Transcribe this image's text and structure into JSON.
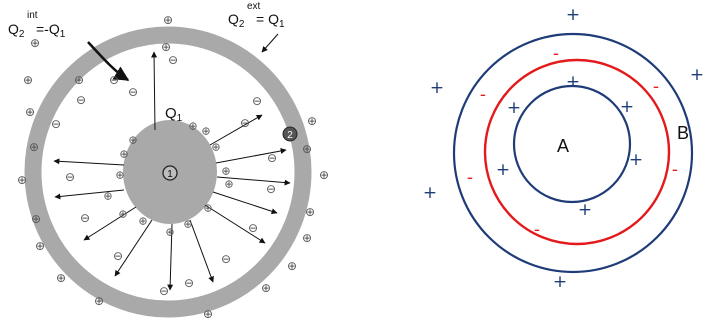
{
  "left_figure": {
    "q2_int": {
      "main": "Q",
      "sub": "2",
      "sup": "int",
      "rhs": "=-Q",
      "rhs_sub": "1"
    },
    "q2_ext": {
      "main": "Q",
      "sub": "2",
      "sup": "ext",
      "rhs": "= Q",
      "rhs_sub": "1"
    },
    "q1": {
      "main": "Q",
      "sub": "1"
    },
    "conductor_1_label": "1",
    "conductor_2_label": "2",
    "outer_plus_symbol": "⊕",
    "inner_minus_symbol": "⊖",
    "center_plus_symbol": "⊕"
  },
  "right_figure": {
    "label_a": "A",
    "label_b": "B",
    "plus": "+",
    "minus": "-"
  },
  "colors": {
    "conductor_gray": "#a9a9a9",
    "outer_circle": "#1f3c78",
    "middle_circle": "#e3191b",
    "inner_circle": "#1f3c78",
    "plus_blue": "#1f3c78",
    "minus_red": "#e3191b"
  }
}
